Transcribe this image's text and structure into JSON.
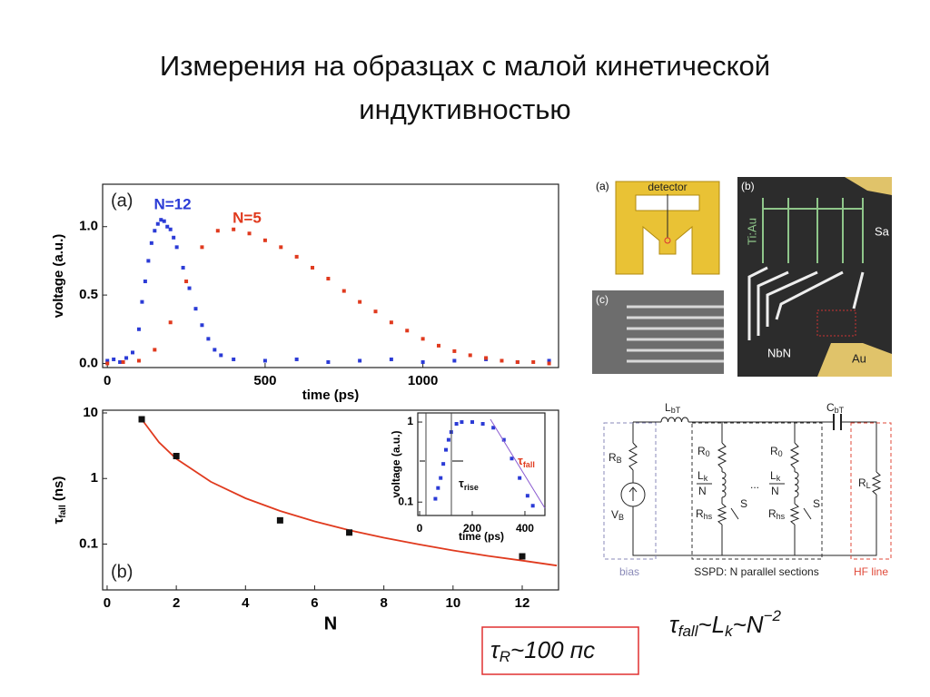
{
  "title": [
    "Измерения на образцах с малой кинетической",
    "индуктивностью"
  ],
  "chart_data": [
    {
      "type": "scatter",
      "panel": "(a)",
      "xlabel": "time (ps)",
      "ylabel": "voltage (a.u.)",
      "xlim": [
        -15,
        1430
      ],
      "ylim": [
        -0.03,
        1.31
      ],
      "xticks": [
        0,
        500,
        1000
      ],
      "yticks": [
        {
          "value": 0,
          "label": "0.0"
        },
        {
          "value": 0.5,
          "label": "0.5"
        },
        {
          "value": 1,
          "label": "1.0"
        }
      ],
      "series": [
        {
          "name": "N=12",
          "color": "#2b3bd6",
          "marker": "square",
          "x": [
            0,
            20,
            40,
            60,
            80,
            100,
            110,
            120,
            130,
            140,
            150,
            160,
            170,
            180,
            190,
            200,
            210,
            220,
            240,
            260,
            280,
            300,
            320,
            340,
            360,
            400,
            500,
            600,
            700,
            800,
            900,
            1000,
            1100,
            1200,
            1300,
            1400
          ],
          "values": [
            0.02,
            0.03,
            0.01,
            0.04,
            0.08,
            0.25,
            0.45,
            0.6,
            0.75,
            0.88,
            0.97,
            1.02,
            1.05,
            1.04,
            1.0,
            0.98,
            0.92,
            0.85,
            0.7,
            0.55,
            0.4,
            0.28,
            0.18,
            0.1,
            0.06,
            0.03,
            0.02,
            0.03,
            0.01,
            0.02,
            0.03,
            0.01,
            0.02,
            0.03,
            0.01,
            0.02
          ]
        },
        {
          "name": "N=5",
          "color": "#e03a1e",
          "marker": "square",
          "x": [
            0,
            50,
            100,
            150,
            200,
            250,
            300,
            350,
            400,
            450,
            500,
            550,
            600,
            650,
            700,
            750,
            800,
            850,
            900,
            950,
            1000,
            1050,
            1100,
            1150,
            1200,
            1250,
            1300,
            1350,
            1400
          ],
          "values": [
            0.0,
            0.01,
            0.02,
            0.1,
            0.3,
            0.6,
            0.85,
            0.97,
            0.98,
            0.95,
            0.9,
            0.85,
            0.78,
            0.7,
            0.62,
            0.53,
            0.45,
            0.38,
            0.3,
            0.24,
            0.18,
            0.13,
            0.09,
            0.06,
            0.04,
            0.02,
            0.01,
            0.01,
            0.0
          ]
        }
      ]
    },
    {
      "type": "scatter",
      "panel": "(b)",
      "xlabel": "N",
      "ylabel": {
        "main": "τ",
        "sub": "fall",
        "rest": " (ns)"
      },
      "log_y": true,
      "xlim": [
        -0.13,
        13.05
      ],
      "ylim": [
        0.02,
        11
      ],
      "xticks": [
        0,
        2,
        4,
        6,
        8,
        10,
        12
      ],
      "yticks": [
        10,
        1,
        0.1
      ],
      "series": [
        {
          "color": "#e03a1e",
          "marker": "line",
          "x": [
            1,
            1.5,
            2,
            3,
            4,
            5,
            6,
            7,
            8,
            9,
            10,
            11,
            12,
            13
          ],
          "values": [
            8,
            3.56,
            2,
            0.89,
            0.5,
            0.32,
            0.222,
            0.163,
            0.125,
            0.099,
            0.08,
            0.066,
            0.056,
            0.047
          ]
        },
        {
          "color": "#111111",
          "marker": "square",
          "x": [
            1,
            2,
            5,
            7,
            12
          ],
          "values": [
            8,
            2.2,
            0.23,
            0.15,
            0.065
          ]
        }
      ]
    },
    {
      "type": "scatter",
      "xlabel": "time (ps)",
      "ylabel": "voltage (a.u.)",
      "log_y": true,
      "xlim": [
        -7,
        476
      ],
      "ylim": [
        0.068,
        1.3
      ],
      "xticks": [
        0,
        200,
        400
      ],
      "yticks": [
        1,
        0.1
      ],
      "annotations": [
        {
          "main": "τ",
          "sub": "rise"
        },
        {
          "main": "τ",
          "sub": "fall"
        }
      ],
      "series": [
        {
          "color": "#2b3bd6",
          "marker": "square",
          "x": [
            60,
            70,
            80,
            90,
            100,
            110,
            120,
            140,
            160,
            200,
            240,
            280,
            320,
            350,
            380,
            410,
            430
          ],
          "values": [
            0.11,
            0.15,
            0.2,
            0.3,
            0.45,
            0.6,
            0.75,
            0.95,
            1.0,
            1.0,
            0.95,
            0.85,
            0.6,
            0.35,
            0.2,
            0.12,
            0.09
          ]
        }
      ]
    }
  ],
  "figure": {
    "panel_a": {
      "label": "(a)",
      "detector": "detector"
    },
    "panel_b": {
      "label": "(b)",
      "tiau": "Ti:Au",
      "sa": "Sa",
      "nbn": "NbN",
      "au": "Au"
    },
    "panel_c": {
      "label": "(c)"
    }
  },
  "circuit": {
    "LbT": [
      "L",
      "bT"
    ],
    "CbT": [
      "C",
      "bT"
    ],
    "RB": [
      "R",
      "B"
    ],
    "VB": [
      "V",
      "B"
    ],
    "sections": [
      {
        "R0": [
          "R",
          "0"
        ],
        "Lk": [
          "L",
          "k",
          "N"
        ],
        "Rhs": [
          "R",
          "hs"
        ],
        "S": "S"
      },
      {
        "R0": [
          "R",
          "0"
        ],
        "Lk": [
          "L",
          "k",
          "N"
        ],
        "Rhs": [
          "R",
          "hs"
        ],
        "S": "S"
      }
    ],
    "dots": "...",
    "RL": [
      "R",
      "L"
    ],
    "bias": "bias",
    "sspd": "SSPD: N parallel sections",
    "hf": "HF line"
  },
  "formulas": {
    "tau_fall": [
      "τ",
      "fall",
      "~L",
      "k",
      "~N",
      "−2"
    ],
    "tau_r": [
      "τ",
      "R",
      "~100 пс"
    ]
  }
}
